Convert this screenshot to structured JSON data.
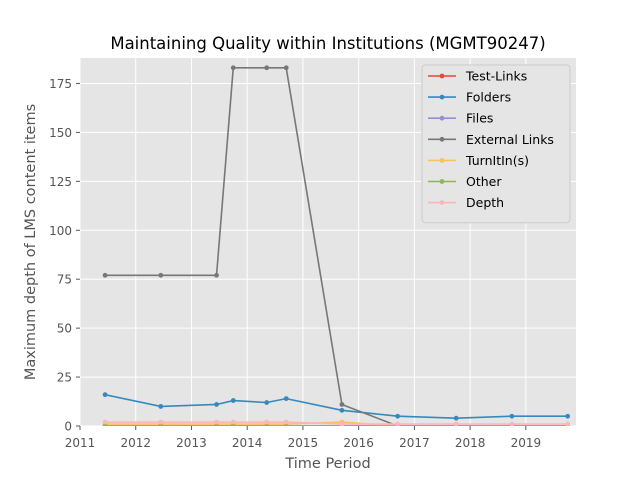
{
  "chart_data": {
    "type": "line",
    "title": "Maintaining Quality within Institutions (MGMT90247)",
    "xlabel": "Time Period",
    "ylabel": "Maximum depth of LMS content items",
    "xlim": [
      2011.0,
      2019.9
    ],
    "ylim": [
      0,
      188
    ],
    "x_ticks": [
      2011,
      2012,
      2013,
      2014,
      2015,
      2016,
      2017,
      2018,
      2019
    ],
    "y_ticks": [
      0,
      25,
      50,
      75,
      100,
      125,
      150,
      175
    ],
    "grid": true,
    "style": "ggplot",
    "legend_position": "upper right",
    "series": [
      {
        "name": "Test-Links",
        "color": "#E24A33",
        "points": [
          [
            2011.45,
            0
          ],
          [
            2012.45,
            0
          ],
          [
            2013.45,
            0
          ],
          [
            2013.75,
            0
          ],
          [
            2014.35,
            0
          ],
          [
            2014.7,
            0
          ],
          [
            2015.7,
            0
          ],
          [
            2016.7,
            0
          ],
          [
            2017.75,
            0
          ],
          [
            2018.75,
            0
          ],
          [
            2019.75,
            0
          ]
        ]
      },
      {
        "name": "Folders",
        "color": "#348ABD",
        "points": [
          [
            2011.45,
            16
          ],
          [
            2012.45,
            10
          ],
          [
            2013.45,
            11
          ],
          [
            2013.75,
            13
          ],
          [
            2014.35,
            12
          ],
          [
            2014.7,
            14
          ],
          [
            2015.7,
            8
          ],
          [
            2016.7,
            5
          ],
          [
            2017.75,
            4
          ],
          [
            2018.75,
            5
          ],
          [
            2019.75,
            5
          ]
        ]
      },
      {
        "name": "Files",
        "color": "#988ED5",
        "points": [
          [
            2011.45,
            0
          ],
          [
            2012.45,
            0
          ],
          [
            2013.45,
            0
          ],
          [
            2013.75,
            0
          ],
          [
            2014.35,
            0
          ],
          [
            2014.7,
            0
          ],
          [
            2015.7,
            0
          ],
          [
            2016.7,
            0
          ],
          [
            2017.75,
            0
          ],
          [
            2018.75,
            0
          ],
          [
            2019.75,
            0
          ]
        ]
      },
      {
        "name": "External Links",
        "color": "#777777",
        "points": [
          [
            2011.45,
            77
          ],
          [
            2012.45,
            77
          ],
          [
            2013.45,
            77
          ],
          [
            2013.75,
            183
          ],
          [
            2014.35,
            183
          ],
          [
            2014.7,
            183
          ],
          [
            2015.7,
            11
          ],
          [
            2016.7,
            0
          ],
          [
            2017.75,
            0
          ],
          [
            2018.75,
            0
          ],
          [
            2019.75,
            0
          ]
        ]
      },
      {
        "name": "TurnItIn(s)",
        "color": "#FBC15E",
        "points": [
          [
            2011.45,
            1
          ],
          [
            2012.45,
            1
          ],
          [
            2013.45,
            1
          ],
          [
            2013.75,
            1
          ],
          [
            2014.35,
            1
          ],
          [
            2014.7,
            1
          ],
          [
            2015.7,
            2
          ],
          [
            2016.7,
            0
          ],
          [
            2017.75,
            0
          ],
          [
            2018.75,
            0
          ],
          [
            2019.75,
            0
          ]
        ]
      },
      {
        "name": "Other",
        "color": "#8EBA42",
        "points": [
          [
            2011.45,
            0
          ],
          [
            2012.45,
            0
          ],
          [
            2013.45,
            0
          ],
          [
            2013.75,
            0
          ],
          [
            2014.35,
            0
          ],
          [
            2014.7,
            0
          ],
          [
            2015.7,
            0
          ],
          [
            2016.7,
            0
          ],
          [
            2017.75,
            0
          ],
          [
            2018.75,
            0
          ],
          [
            2019.75,
            0
          ]
        ]
      },
      {
        "name": "Depth",
        "color": "#FFB5B8",
        "points": [
          [
            2011.45,
            2
          ],
          [
            2012.45,
            2
          ],
          [
            2013.45,
            2
          ],
          [
            2013.75,
            2
          ],
          [
            2014.35,
            2
          ],
          [
            2014.7,
            2
          ],
          [
            2015.7,
            1
          ],
          [
            2016.7,
            1
          ],
          [
            2017.75,
            1
          ],
          [
            2018.75,
            1
          ],
          [
            2019.75,
            1
          ]
        ]
      }
    ]
  }
}
